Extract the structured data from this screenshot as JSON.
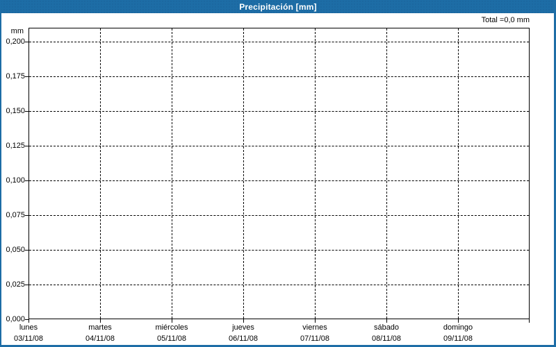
{
  "window": {
    "title": "Precipitación [mm]"
  },
  "total_label": "Total =0,0 mm",
  "colors": {
    "titlebar": "#1d6da6",
    "frame_border": "#1d6da6",
    "title_text": "#ffffff",
    "plot_background": "#ffffff",
    "grid": "#000000",
    "text": "#000000"
  },
  "chart_data": {
    "type": "bar",
    "title": "Precipitación [mm]",
    "xlabel": "",
    "ylabel": "mm",
    "total": "Total =0,0 mm",
    "grid": true,
    "legend": false,
    "ylim": [
      0,
      0.21
    ],
    "y_tick_labels": [
      "0,200",
      "0,175",
      "0,150",
      "0,125",
      "0,100",
      "0,075",
      "0,050",
      "0,025",
      "0,000"
    ],
    "y_tick_values": [
      0.2,
      0.175,
      0.15,
      0.125,
      0.1,
      0.075,
      0.05,
      0.025,
      0.0
    ],
    "categories": [
      {
        "day": "lunes",
        "date": "03/11/08"
      },
      {
        "day": "martes",
        "date": "04/11/08"
      },
      {
        "day": "miércoles",
        "date": "05/11/08"
      },
      {
        "day": "jueves",
        "date": "06/11/08"
      },
      {
        "day": "viernes",
        "date": "07/11/08"
      },
      {
        "day": "sábado",
        "date": "08/11/08"
      },
      {
        "day": "domingo",
        "date": "09/11/08"
      }
    ],
    "values": [
      0,
      0,
      0,
      0,
      0,
      0,
      0
    ]
  }
}
